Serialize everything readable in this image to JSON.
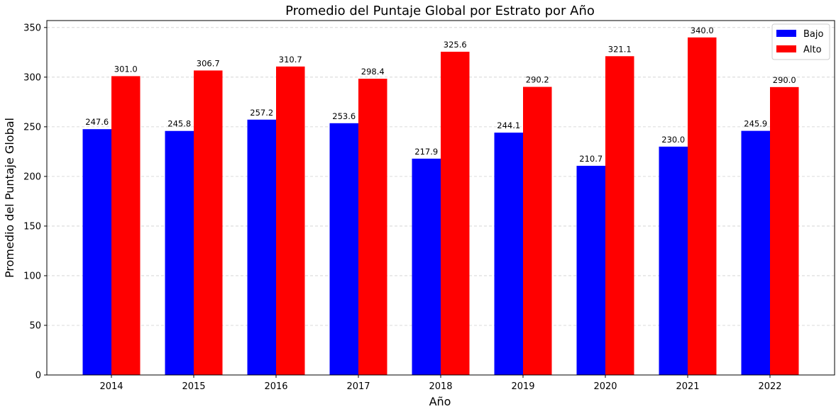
{
  "chart_data": {
    "type": "bar",
    "title": "Promedio del Puntaje Global por Estrato por Año",
    "xlabel": "Año",
    "ylabel": "Promedio del Puntaje Global",
    "categories": [
      "2014",
      "2015",
      "2016",
      "2017",
      "2018",
      "2019",
      "2020",
      "2021",
      "2022"
    ],
    "series": [
      {
        "name": "Bajo",
        "color": "#0000ff",
        "values": [
          247.6,
          245.8,
          257.2,
          253.6,
          217.9,
          244.1,
          210.7,
          230.0,
          245.9
        ]
      },
      {
        "name": "Alto",
        "color": "#ff0000",
        "values": [
          301.0,
          306.7,
          310.7,
          298.4,
          325.6,
          290.2,
          321.1,
          340.0,
          290.0
        ]
      }
    ],
    "ylim": [
      0,
      357
    ],
    "yticks": [
      0,
      50,
      100,
      150,
      200,
      250,
      300,
      350
    ],
    "grid": "y-dashed",
    "legend": "top-right",
    "data_labels": true
  }
}
